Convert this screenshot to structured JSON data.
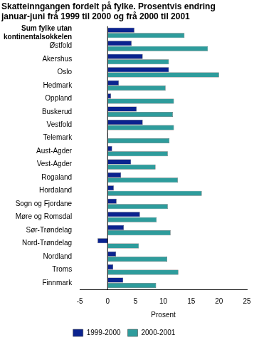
{
  "chart_data": {
    "type": "bar",
    "orientation": "horizontal",
    "title": [
      "Skatteinngangen fordelt på fylke. Prosentvis endring",
      "januar-juni frå 1999 til 2000 og frå 2000 til 2001"
    ],
    "xlabel": "Prosent",
    "categories": [
      "Sum fylke utan kontinentalsokkelen",
      "Østfold",
      "Akershus",
      "Oslo",
      "Hedmark",
      "Oppland",
      "Buskerud",
      "Vestfold",
      "Telemark",
      "Aust-Agder",
      "Vest-Agder",
      "Rogaland",
      "Hordaland",
      "Sogn og Fjordane",
      "Møre og Romsdal",
      "Sør-Trøndelag",
      "Nord-Trøndelag",
      "Nordland",
      "Troms",
      "Finnmark"
    ],
    "series": [
      {
        "name": "1999-2000",
        "color": "#0b238f",
        "values": [
          4.8,
          4.3,
          6.3,
          11,
          2,
          0.6,
          5.2,
          6.3,
          0.1,
          0.8,
          4.2,
          2.4,
          1.1,
          1.6,
          5.8,
          2.9,
          -1.8,
          1.5,
          1.0,
          2.8
        ]
      },
      {
        "name": "2000-2001",
        "color": "#2e9c9c",
        "values": [
          13.8,
          18,
          11,
          20,
          10.4,
          11.9,
          11.7,
          11.9,
          11.1,
          10.8,
          8.6,
          12.6,
          16.9,
          10.8,
          8.8,
          11.3,
          5.6,
          10.7,
          12.7,
          8.7
        ]
      }
    ],
    "xlim": [
      -5,
      25
    ],
    "xticks": [
      -5,
      0,
      5,
      10,
      15,
      20,
      25
    ],
    "grid": false,
    "legend": "bottom"
  }
}
